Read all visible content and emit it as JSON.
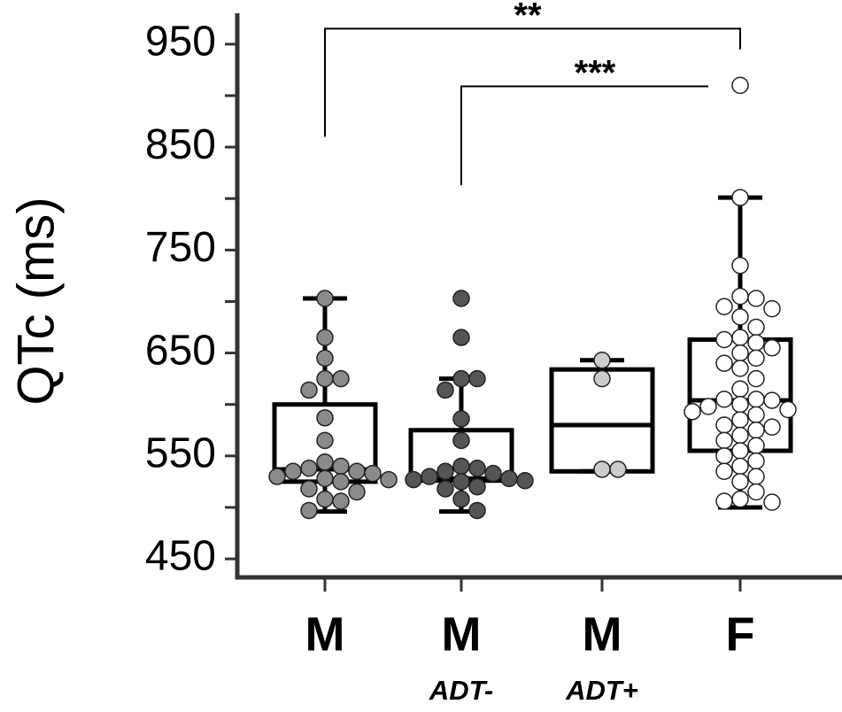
{
  "chart_data": {
    "type": "box",
    "y_label": "QTc (ms)",
    "categories": [
      "M",
      "M",
      "M",
      "F"
    ],
    "subcategories": [
      null,
      "ADT-",
      "ADT+",
      null
    ],
    "ylim": [
      432,
      980
    ],
    "yticks": [
      450,
      550,
      650,
      750,
      850,
      950
    ],
    "minor_yticks": [
      500,
      600,
      700,
      800,
      900
    ],
    "significance": [
      "**",
      "***"
    ],
    "boxes": [
      {
        "color": "#8a8a8a",
        "whisker_low": 496,
        "q1": 525,
        "median": 537,
        "q3": 600,
        "whisker_high": 703,
        "points": [
          703,
          665,
          645,
          625,
          625,
          614,
          587,
          565,
          544,
          540,
          538,
          535,
          535,
          533,
          530,
          528,
          527,
          525,
          518,
          515,
          508,
          506,
          497
        ]
      },
      {
        "color": "#555555",
        "whisker_low": 496,
        "q1": 526,
        "median": 528,
        "q3": 575,
        "whisker_high": 625,
        "points": [
          703,
          665,
          625,
          625,
          614,
          586,
          565,
          540,
          538,
          535,
          533,
          530,
          528,
          527,
          526,
          525,
          520,
          518,
          508,
          497
        ]
      },
      {
        "color": "#cccccc",
        "whisker_low": 535,
        "q1": 535,
        "median": 580,
        "q3": 634,
        "whisker_high": 643,
        "points": [
          643,
          625,
          537,
          537
        ]
      },
      {
        "color": "#ffffff",
        "whisker_low": 500,
        "q1": 555,
        "median": 604,
        "q3": 663,
        "whisker_high": 801,
        "points": [
          910,
          801,
          735,
          705,
          703,
          695,
          693,
          685,
          675,
          665,
          663,
          660,
          655,
          650,
          645,
          640,
          635,
          625,
          615,
          605,
          605,
          604,
          600,
          598,
          595,
          593,
          590,
          585,
          580,
          578,
          575,
          570,
          565,
          560,
          555,
          550,
          545,
          540,
          535,
          530,
          525,
          515,
          508,
          506,
          505
        ]
      }
    ]
  }
}
